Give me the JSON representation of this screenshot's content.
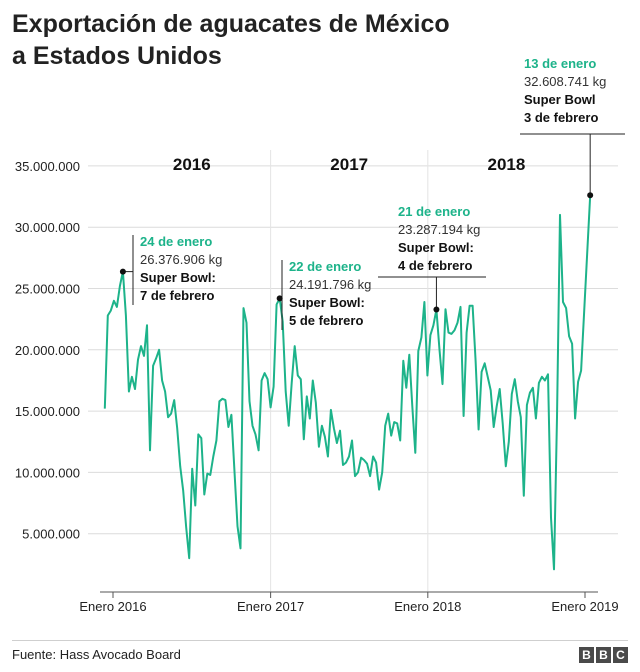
{
  "title_lines": [
    "Exportación de aguacates de México",
    "a Estados Unidos"
  ],
  "source": "Fuente: Hass Avocado Board",
  "logo": [
    "B",
    "B",
    "C"
  ],
  "chart_data": {
    "type": "line",
    "unit": "kg",
    "ylim": [
      0,
      35000000
    ],
    "yticks": [
      5000000,
      10000000,
      15000000,
      20000000,
      25000000,
      30000000,
      35000000
    ],
    "ytick_labels": [
      "5.000.000",
      "10.000.000",
      "15.000.000",
      "20.000.000",
      "25.000.000",
      "30.000.000",
      "35.000.000"
    ],
    "x_range": [
      "2015-12-13",
      "2019-01-20"
    ],
    "xticks": [
      {
        "date": "2016-01-01",
        "label": "Enero 2016"
      },
      {
        "date": "2017-01-01",
        "label": "Enero 2017"
      },
      {
        "date": "2018-01-01",
        "label": "Enero 2018"
      },
      {
        "date": "2019-01-01",
        "label": "Enero 2019"
      }
    ],
    "year_labels": [
      "2016",
      "2017",
      "2018"
    ],
    "grid": "horizontal",
    "color": "#1db38a",
    "series": [
      {
        "values": [
          [
            "2015-12-13",
            15200000
          ],
          [
            "2015-12-20",
            22800000
          ],
          [
            "2015-12-27",
            23200000
          ],
          [
            "2016-01-03",
            24000000
          ],
          [
            "2016-01-10",
            23500000
          ],
          [
            "2016-01-17",
            25200000
          ],
          [
            "2016-01-24",
            26376906
          ],
          [
            "2016-01-31",
            22800000
          ],
          [
            "2016-02-07",
            16600000
          ],
          [
            "2016-02-14",
            17800000
          ],
          [
            "2016-02-21",
            16800000
          ],
          [
            "2016-02-28",
            19200000
          ],
          [
            "2016-03-06",
            20300000
          ],
          [
            "2016-03-13",
            19500000
          ],
          [
            "2016-03-20",
            22000000
          ],
          [
            "2016-03-27",
            11800000
          ],
          [
            "2016-04-03",
            18700000
          ],
          [
            "2016-04-10",
            19300000
          ],
          [
            "2016-04-17",
            20000000
          ],
          [
            "2016-04-24",
            17500000
          ],
          [
            "2016-05-01",
            16600000
          ],
          [
            "2016-05-08",
            14500000
          ],
          [
            "2016-05-15",
            14800000
          ],
          [
            "2016-05-22",
            15900000
          ],
          [
            "2016-05-29",
            13600000
          ],
          [
            "2016-06-05",
            10500000
          ],
          [
            "2016-06-12",
            8500000
          ],
          [
            "2016-06-19",
            5500000
          ],
          [
            "2016-06-26",
            3000000
          ],
          [
            "2016-07-03",
            10300000
          ],
          [
            "2016-07-10",
            7300000
          ],
          [
            "2016-07-17",
            13100000
          ],
          [
            "2016-07-24",
            12800000
          ],
          [
            "2016-07-31",
            8200000
          ],
          [
            "2016-08-07",
            9900000
          ],
          [
            "2016-08-14",
            9800000
          ],
          [
            "2016-08-21",
            11300000
          ],
          [
            "2016-08-28",
            12600000
          ],
          [
            "2016-09-04",
            15800000
          ],
          [
            "2016-09-11",
            16000000
          ],
          [
            "2016-09-18",
            15900000
          ],
          [
            "2016-09-25",
            13700000
          ],
          [
            "2016-10-02",
            14700000
          ],
          [
            "2016-10-09",
            10200000
          ],
          [
            "2016-10-16",
            5600000
          ],
          [
            "2016-10-23",
            3800000
          ],
          [
            "2016-10-30",
            23400000
          ],
          [
            "2016-11-06",
            22200000
          ],
          [
            "2016-11-13",
            15800000
          ],
          [
            "2016-11-20",
            13800000
          ],
          [
            "2016-11-27",
            13100000
          ],
          [
            "2016-12-04",
            11800000
          ],
          [
            "2016-12-11",
            17500000
          ],
          [
            "2016-12-18",
            18100000
          ],
          [
            "2016-12-25",
            17600000
          ],
          [
            "2017-01-01",
            15300000
          ],
          [
            "2017-01-08",
            17000000
          ],
          [
            "2017-01-15",
            23700000
          ],
          [
            "2017-01-22",
            24191796
          ],
          [
            "2017-01-29",
            22300000
          ],
          [
            "2017-02-05",
            16600000
          ],
          [
            "2017-02-12",
            13800000
          ],
          [
            "2017-02-19",
            17300000
          ],
          [
            "2017-02-26",
            20300000
          ],
          [
            "2017-03-05",
            17900000
          ],
          [
            "2017-03-12",
            17600000
          ],
          [
            "2017-03-19",
            12700000
          ],
          [
            "2017-03-26",
            16200000
          ],
          [
            "2017-04-02",
            14400000
          ],
          [
            "2017-04-09",
            17500000
          ],
          [
            "2017-04-16",
            15700000
          ],
          [
            "2017-04-23",
            12100000
          ],
          [
            "2017-04-30",
            13800000
          ],
          [
            "2017-05-07",
            12900000
          ],
          [
            "2017-05-14",
            11300000
          ],
          [
            "2017-05-21",
            15100000
          ],
          [
            "2017-05-28",
            13600000
          ],
          [
            "2017-06-04",
            12400000
          ],
          [
            "2017-06-11",
            13400000
          ],
          [
            "2017-06-18",
            10600000
          ],
          [
            "2017-06-25",
            10800000
          ],
          [
            "2017-07-02",
            11300000
          ],
          [
            "2017-07-09",
            12600000
          ],
          [
            "2017-07-16",
            9700000
          ],
          [
            "2017-07-23",
            10000000
          ],
          [
            "2017-07-30",
            11200000
          ],
          [
            "2017-08-06",
            11000000
          ],
          [
            "2017-08-13",
            10700000
          ],
          [
            "2017-08-20",
            9700000
          ],
          [
            "2017-08-27",
            11300000
          ],
          [
            "2017-09-03",
            10800000
          ],
          [
            "2017-09-10",
            8600000
          ],
          [
            "2017-09-17",
            10000000
          ],
          [
            "2017-09-24",
            13800000
          ],
          [
            "2017-10-01",
            14800000
          ],
          [
            "2017-10-08",
            13000000
          ],
          [
            "2017-10-15",
            14100000
          ],
          [
            "2017-10-22",
            14000000
          ],
          [
            "2017-10-29",
            12600000
          ],
          [
            "2017-11-05",
            19100000
          ],
          [
            "2017-11-12",
            16900000
          ],
          [
            "2017-11-19",
            19600000
          ],
          [
            "2017-11-26",
            15400000
          ],
          [
            "2017-12-03",
            11600000
          ],
          [
            "2017-12-10",
            19900000
          ],
          [
            "2017-12-17",
            21000000
          ],
          [
            "2017-12-24",
            23900000
          ],
          [
            "2017-12-31",
            17900000
          ],
          [
            "2018-01-07",
            21200000
          ],
          [
            "2018-01-14",
            22000000
          ],
          [
            "2018-01-21",
            23287194
          ],
          [
            "2018-01-28",
            20100000
          ],
          [
            "2018-02-04",
            17200000
          ],
          [
            "2018-02-11",
            23300000
          ],
          [
            "2018-02-18",
            21400000
          ],
          [
            "2018-02-25",
            21300000
          ],
          [
            "2018-03-04",
            21600000
          ],
          [
            "2018-03-11",
            22200000
          ],
          [
            "2018-03-18",
            23500000
          ],
          [
            "2018-03-25",
            14600000
          ],
          [
            "2018-04-01",
            21400000
          ],
          [
            "2018-04-08",
            23600000
          ],
          [
            "2018-04-15",
            23600000
          ],
          [
            "2018-04-22",
            19100000
          ],
          [
            "2018-04-29",
            13500000
          ],
          [
            "2018-05-06",
            18200000
          ],
          [
            "2018-05-13",
            18900000
          ],
          [
            "2018-05-20",
            17800000
          ],
          [
            "2018-05-27",
            16700000
          ],
          [
            "2018-06-03",
            13700000
          ],
          [
            "2018-06-10",
            15400000
          ],
          [
            "2018-06-17",
            16800000
          ],
          [
            "2018-06-24",
            14000000
          ],
          [
            "2018-07-01",
            10500000
          ],
          [
            "2018-07-08",
            12500000
          ],
          [
            "2018-07-15",
            16400000
          ],
          [
            "2018-07-22",
            17600000
          ],
          [
            "2018-07-29",
            15800000
          ],
          [
            "2018-08-05",
            14500000
          ],
          [
            "2018-08-12",
            8100000
          ],
          [
            "2018-08-19",
            15500000
          ],
          [
            "2018-08-26",
            16500000
          ],
          [
            "2018-09-02",
            16900000
          ],
          [
            "2018-09-09",
            14400000
          ],
          [
            "2018-09-16",
            17300000
          ],
          [
            "2018-09-23",
            17800000
          ],
          [
            "2018-09-30",
            17500000
          ],
          [
            "2018-10-07",
            18000000
          ],
          [
            "2018-10-14",
            6300000
          ],
          [
            "2018-10-21",
            2100000
          ],
          [
            "2018-10-28",
            14500000
          ],
          [
            "2018-11-04",
            31000000
          ],
          [
            "2018-11-11",
            23900000
          ],
          [
            "2018-11-18",
            23400000
          ],
          [
            "2018-11-25",
            21100000
          ],
          [
            "2018-12-02",
            20500000
          ],
          [
            "2018-12-09",
            14400000
          ],
          [
            "2018-12-16",
            17400000
          ],
          [
            "2018-12-23",
            18300000
          ],
          [
            "2019-01-13",
            32608741
          ]
        ]
      }
    ],
    "annotations": [
      {
        "date": "2016-01-24",
        "value": 26376906,
        "date_label": "24 de enero",
        "value_label": "26.376.906 kg",
        "sb_line1": "Super Bowl:",
        "sb_line2": "7 de febrero"
      },
      {
        "date": "2017-01-22",
        "value": 24191796,
        "date_label": "22 de enero",
        "value_label": "24.191.796 kg",
        "sb_line1": "Super Bowl:",
        "sb_line2": "5 de febrero"
      },
      {
        "date": "2018-01-21",
        "value": 23287194,
        "date_label": "21 de enero",
        "value_label": "23.287.194 kg",
        "sb_line1": "Super Bowl:",
        "sb_line2": "4 de febrero"
      },
      {
        "date": "2019-01-13",
        "value": 32608741,
        "date_label": "13 de enero",
        "value_label": "32.608.741 kg",
        "sb_line1": "Super Bowl",
        "sb_line2": "3 de febrero"
      }
    ]
  }
}
